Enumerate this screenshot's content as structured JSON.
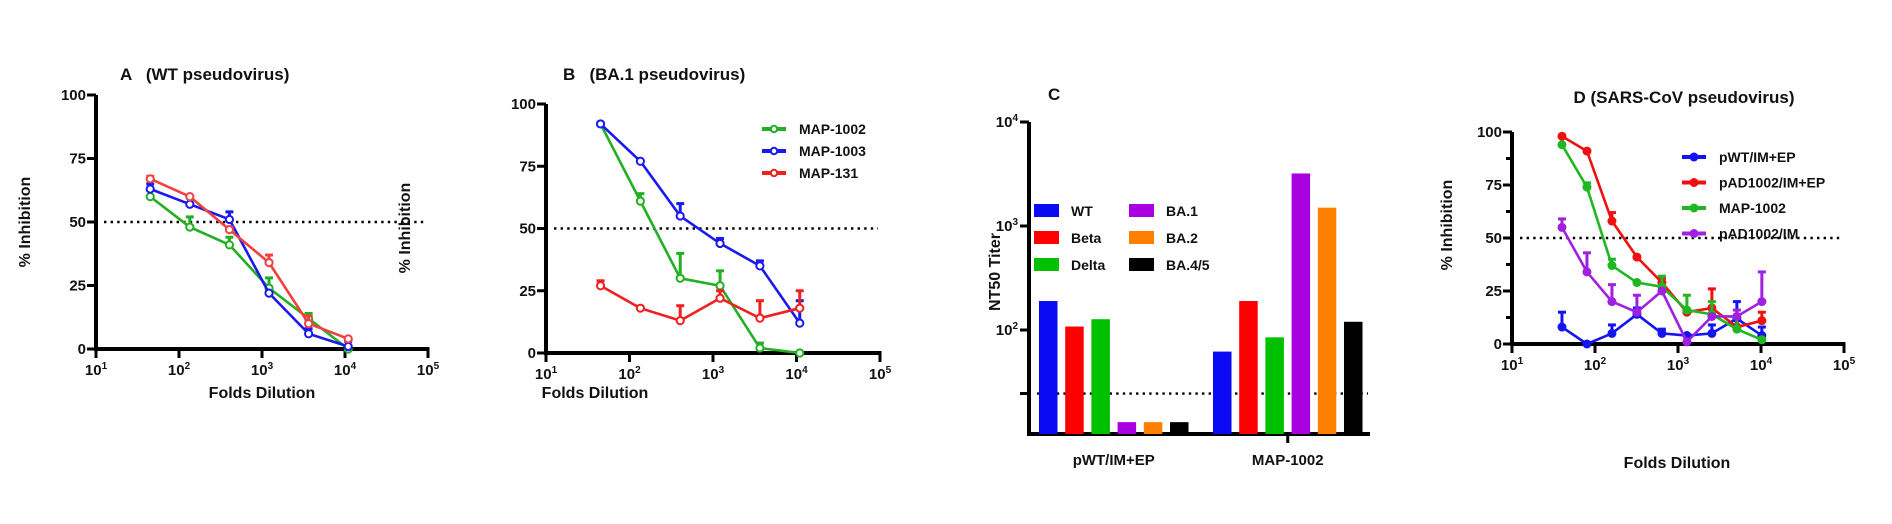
{
  "chart_data": [
    {
      "id": "A",
      "type": "line",
      "title": "A   (WT pseudovirus)",
      "xlabel": "Folds Dilution",
      "ylabel": "% Inhibition",
      "xscale": "log",
      "xlim": [
        10,
        100000
      ],
      "ylim": [
        0,
        100
      ],
      "xticks": [
        {
          "value": 10,
          "base": "10",
          "exp": "1"
        },
        {
          "value": 100,
          "base": "10",
          "exp": "2"
        },
        {
          "value": 1000,
          "base": "10",
          "exp": "3"
        },
        {
          "value": 10000,
          "base": "10",
          "exp": "4"
        },
        {
          "value": 100000,
          "base": "10",
          "exp": "5"
        }
      ],
      "yticks": [
        0,
        25,
        50,
        75,
        100
      ],
      "reference_line": 50,
      "legend": "none",
      "marker": "open-circle",
      "series": [
        {
          "name": "MAP-1002",
          "color": "#22b022",
          "x": [
            45,
            135,
            405,
            1215,
            3645,
            10935
          ],
          "y": [
            60,
            48,
            41,
            24,
            12,
            0
          ],
          "err": [
            0,
            4,
            3,
            4,
            2,
            0
          ]
        },
        {
          "name": "MAP-1003",
          "color": "#1a1aee",
          "x": [
            45,
            135,
            405,
            1215,
            3645,
            10935
          ],
          "y": [
            63,
            57,
            51,
            22,
            6,
            1
          ],
          "err": [
            2,
            0,
            3,
            0,
            2,
            2
          ]
        },
        {
          "name": "MAP-131",
          "color": "#f04040",
          "x": [
            45,
            135,
            405,
            1215,
            3645,
            10935
          ],
          "y": [
            67,
            60,
            47,
            34,
            10,
            4
          ],
          "err": [
            1,
            0,
            1,
            3,
            3,
            0
          ]
        }
      ]
    },
    {
      "id": "B",
      "type": "line",
      "title": "B   (BA.1 pseudovirus)",
      "xlabel": "Folds Dilution",
      "ylabel": "% Inhibition",
      "xscale": "log",
      "xlim": [
        10,
        100000
      ],
      "ylim": [
        0,
        100
      ],
      "xticks": [
        {
          "value": 10,
          "base": "10",
          "exp": "1"
        },
        {
          "value": 100,
          "base": "10",
          "exp": "2"
        },
        {
          "value": 1000,
          "base": "10",
          "exp": "3"
        },
        {
          "value": 10000,
          "base": "10",
          "exp": "4"
        },
        {
          "value": 100000,
          "base": "10",
          "exp": "5"
        }
      ],
      "yticks": [
        0,
        25,
        50,
        75,
        100
      ],
      "reference_line": 50,
      "legend": "top-right",
      "marker": "open-circle",
      "series": [
        {
          "name": "MAP-1002",
          "color": "#22b022",
          "x": [
            45,
            135,
            405,
            1215,
            3645,
            10935
          ],
          "y": [
            92,
            61,
            30,
            27,
            2,
            0
          ],
          "err": [
            0,
            3,
            10,
            6,
            2,
            0
          ]
        },
        {
          "name": "MAP-1003",
          "color": "#1a1aee",
          "x": [
            45,
            135,
            405,
            1215,
            3645,
            10935
          ],
          "y": [
            92,
            77,
            55,
            44,
            35,
            12
          ],
          "err": [
            0,
            0,
            5,
            2,
            2,
            9
          ]
        },
        {
          "name": "MAP-131",
          "color": "#f02020",
          "x": [
            45,
            135,
            405,
            1215,
            3645,
            10935
          ],
          "y": [
            27,
            18,
            13,
            22,
            14,
            18
          ],
          "err": [
            2,
            0,
            6,
            3,
            7,
            7
          ]
        }
      ]
    },
    {
      "id": "C",
      "type": "bar",
      "title": "C",
      "xlabel": "",
      "ylabel": "NT50 Titer",
      "yscale": "log",
      "ylim": [
        10,
        10000
      ],
      "yticks": [
        {
          "value": 100,
          "base": "10",
          "exp": "2"
        },
        {
          "value": 1000,
          "base": "10",
          "exp": "3"
        },
        {
          "value": 10000,
          "base": "10",
          "exp": "4"
        }
      ],
      "reference_line": 24.5,
      "legend": "upper-left",
      "categories": [
        "pWT/IM+EP",
        "MAP-1002"
      ],
      "series": [
        {
          "name": "WT",
          "color": "#0a0af5",
          "values": [
            190,
            62
          ]
        },
        {
          "name": "Beta",
          "color": "#ff0000",
          "values": [
            108,
            190
          ]
        },
        {
          "name": "Delta",
          "color": "#00c000",
          "values": [
            127,
            85
          ]
        },
        {
          "name": "BA.1",
          "color": "#a800e0",
          "values": [
            13,
            3200
          ]
        },
        {
          "name": "BA.2",
          "color": "#ff8000",
          "values": [
            13,
            1500
          ]
        },
        {
          "name": "BA.4/5",
          "color": "#000000",
          "values": [
            13,
            120
          ]
        }
      ]
    },
    {
      "id": "D",
      "type": "line",
      "title": "D (SARS-CoV pseudovirus)",
      "xlabel": "Folds Dilution",
      "ylabel": "% Inhibition",
      "xscale": "log",
      "xlim": [
        10,
        100000
      ],
      "ylim": [
        0,
        100
      ],
      "xticks": [
        {
          "value": 10,
          "base": "10",
          "exp": "1"
        },
        {
          "value": 100,
          "base": "10",
          "exp": "2"
        },
        {
          "value": 1000,
          "base": "10",
          "exp": "3"
        },
        {
          "value": 10000,
          "base": "10",
          "exp": "4"
        },
        {
          "value": 100000,
          "base": "10",
          "exp": "5"
        }
      ],
      "yticks": [
        0,
        25,
        50,
        75,
        100
      ],
      "yminor": [
        12.5,
        37.5,
        62.5,
        87.5
      ],
      "reference_line": 50,
      "legend": "top-right",
      "marker": "filled-circle",
      "series": [
        {
          "name": "pWT/IM+EP",
          "color": "#1414f0",
          "x": [
            40,
            80,
            160,
            320,
            640,
            1280,
            2560,
            5120,
            10240
          ],
          "y": [
            8,
            0,
            5,
            14,
            5,
            4,
            5,
            12,
            4
          ],
          "err": [
            7,
            0,
            4,
            3,
            2,
            0,
            4,
            8,
            4
          ]
        },
        {
          "name": "pAD1002/IM+EP",
          "color": "#f01010",
          "x": [
            40,
            80,
            160,
            320,
            640,
            1280,
            2560,
            5120,
            10240
          ],
          "y": [
            98,
            91,
            58,
            41,
            29,
            15,
            17,
            8,
            11
          ],
          "err": [
            0,
            0,
            4,
            0,
            2,
            1,
            9,
            0,
            4
          ]
        },
        {
          "name": "MAP-1002",
          "color": "#20b820",
          "x": [
            40,
            80,
            160,
            320,
            640,
            1280,
            2560,
            5120,
            10240
          ],
          "y": [
            94,
            74,
            37,
            29,
            27,
            16,
            14,
            7,
            2
          ],
          "err": [
            0,
            2,
            3,
            0,
            5,
            7,
            6,
            6,
            0
          ]
        },
        {
          "name": "pAD1002/IM",
          "color": "#a020e0",
          "x": [
            40,
            80,
            160,
            320,
            640,
            1280,
            2560,
            5120,
            10240
          ],
          "y": [
            55,
            34,
            20,
            15,
            25,
            1,
            13,
            13,
            20
          ],
          "err": [
            4,
            9,
            8,
            8,
            0,
            0,
            0,
            3,
            14
          ]
        }
      ]
    }
  ]
}
